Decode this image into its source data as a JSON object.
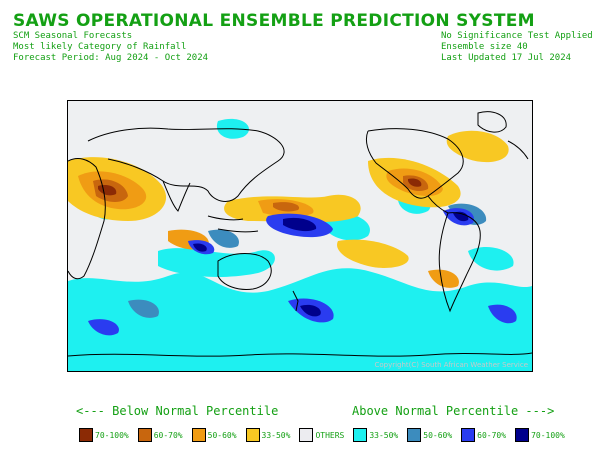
{
  "header": {
    "title": "SAWS OPERATIONAL ENSEMBLE PREDICTION SYSTEM",
    "subtitle": "SCM Seasonal Forecasts",
    "category": "Most likely Category of Rainfall",
    "period": "Forecast Period: Aug 2024 - Oct 2024",
    "significance": "No Significance Test Applied",
    "ensemble": "Ensemble size 40",
    "updated": "Last Updated 17 Jul 2024"
  },
  "map": {
    "copyright": "Copyright(C) South African Weather Service"
  },
  "legend": {
    "below_heading": "<--- Below Normal Percentile",
    "above_heading": "Above Normal Percentile --->",
    "items": [
      {
        "label": "70-100%",
        "color": "#8b2a05"
      },
      {
        "label": "60-70%",
        "color": "#c8660e"
      },
      {
        "label": "50-60%",
        "color": "#f09c14"
      },
      {
        "label": "33-50%",
        "color": "#f8c823"
      },
      {
        "label": "OTHERS",
        "color": "#ececf0"
      },
      {
        "label": "33-50%",
        "color": "#1ef0f0"
      },
      {
        "label": "50-60%",
        "color": "#3c8cbe"
      },
      {
        "label": "60-70%",
        "color": "#2a3cf0"
      },
      {
        "label": "70-100%",
        "color": "#00008c"
      }
    ]
  }
}
